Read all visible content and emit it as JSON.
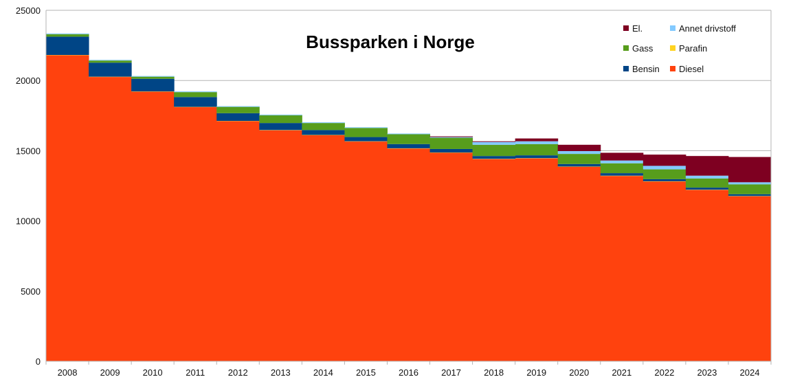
{
  "chart_data": {
    "type": "area",
    "stacked": true,
    "step": true,
    "title": "Bussparken i Norge",
    "xlabel": "",
    "ylabel": "",
    "categories": [
      "2008",
      "2009",
      "2010",
      "2011",
      "2012",
      "2013",
      "2014",
      "2015",
      "2016",
      "2017",
      "2018",
      "2019",
      "2020",
      "2021",
      "2022",
      "2023",
      "2024"
    ],
    "ylim": [
      0,
      25000
    ],
    "yticks": [
      0,
      5000,
      10000,
      15000,
      20000,
      25000
    ],
    "grid": true,
    "legend_position": "top-right",
    "series": [
      {
        "name": "Diesel",
        "color": "#ff420e",
        "values": [
          21800,
          20250,
          19200,
          18100,
          17100,
          16450,
          16100,
          15650,
          15150,
          14850,
          14400,
          14450,
          13850,
          13200,
          12800,
          12200,
          11750
        ]
      },
      {
        "name": "Parafin",
        "color": "#ffd320",
        "values": [
          20,
          20,
          20,
          20,
          20,
          20,
          20,
          20,
          20,
          20,
          20,
          20,
          20,
          20,
          20,
          20,
          20
        ]
      },
      {
        "name": "Bensin",
        "color": "#004586",
        "values": [
          1300,
          1000,
          900,
          700,
          550,
          500,
          350,
          300,
          300,
          250,
          200,
          200,
          180,
          180,
          150,
          150,
          130
        ]
      },
      {
        "name": "Gass",
        "color": "#579d1c",
        "values": [
          180,
          150,
          150,
          350,
          450,
          550,
          500,
          650,
          700,
          800,
          800,
          800,
          720,
          700,
          700,
          650,
          700
        ]
      },
      {
        "name": "Annet drivstoff",
        "color": "#83caff",
        "values": [
          50,
          50,
          50,
          50,
          50,
          50,
          50,
          50,
          50,
          50,
          200,
          200,
          200,
          200,
          250,
          200,
          150
        ]
      },
      {
        "name": "El.",
        "color": "#7e0021",
        "values": [
          0,
          0,
          0,
          0,
          0,
          0,
          0,
          0,
          0,
          50,
          50,
          200,
          450,
          550,
          800,
          1400,
          1800
        ]
      }
    ],
    "legend_order": [
      "El.",
      "Annet drivstoff",
      "Gass",
      "Parafin",
      "Bensin",
      "Diesel"
    ]
  }
}
